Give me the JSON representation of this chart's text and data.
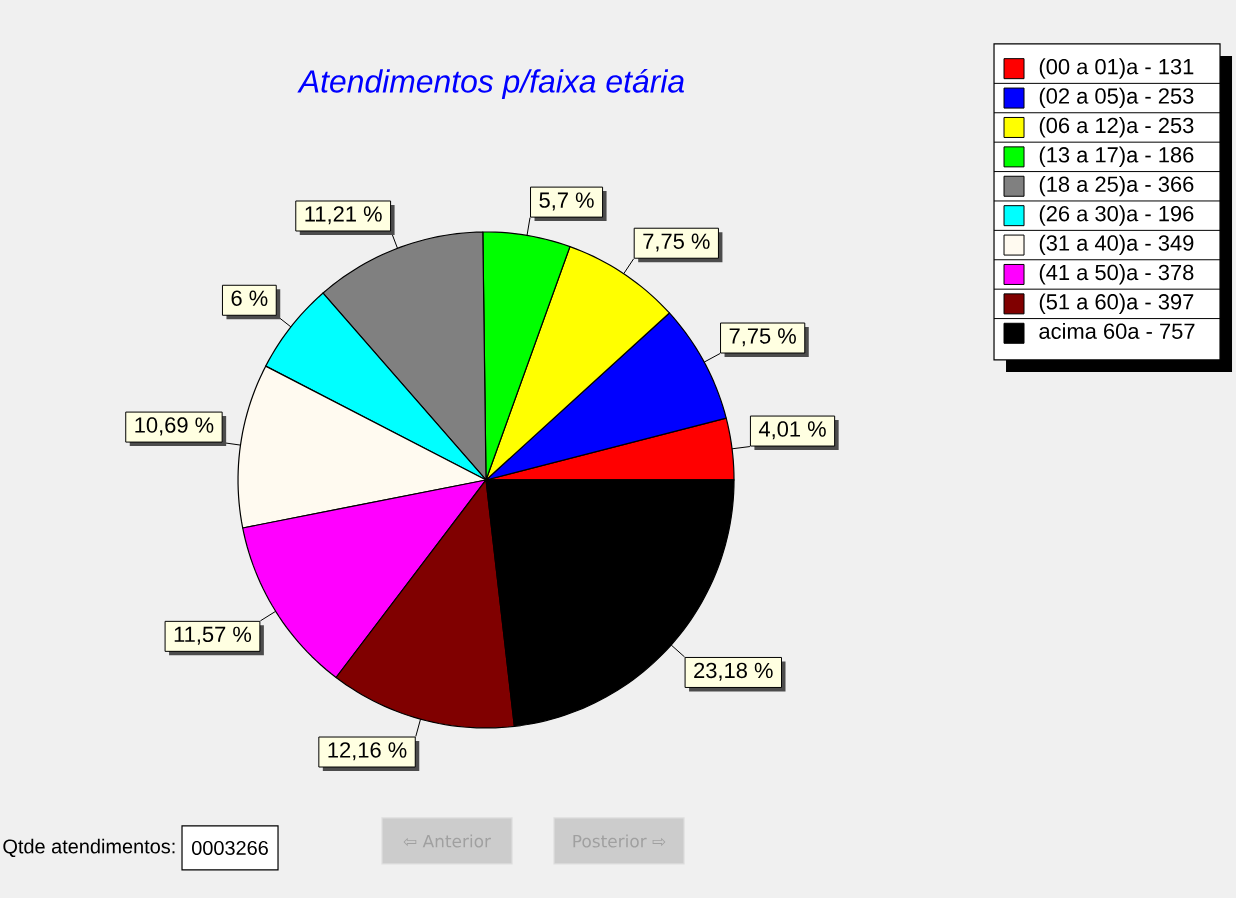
{
  "chart_data": {
    "type": "pie",
    "title": "Atendimentos p/faixa etária",
    "categories": [
      "(00 a 01)a - 131",
      "(02 a 05)a - 253",
      "(06 a 12)a - 253",
      "(13 a 17)a - 186",
      "(18 a 25)a - 366",
      "(26 a 30)a - 196",
      "(31 a 40)a - 349",
      "(41 a 50)a - 378",
      "(51 a 60)a - 397",
      "acima 60a - 757"
    ],
    "values": [
      4.01,
      7.75,
      7.75,
      5.7,
      11.21,
      6,
      10.69,
      11.57,
      12.16,
      23.18
    ],
    "colors": [
      "#ff0000",
      "#0000ff",
      "#ffff00",
      "#00ff00",
      "#808080",
      "#00ffff",
      "#fffaf0",
      "#ff00ff",
      "#800000",
      "#000000"
    ],
    "value_labels": [
      "4,01 %",
      "7,75 %",
      "7,75 %",
      "5,7 %",
      "11,21 %",
      "6 %",
      "10,69 %",
      "11,57 %",
      "12,16 %",
      "23,18 %"
    ],
    "legend": "top right",
    "annotations": [
      "Qtde atendimentos:",
      "0003266",
      "⇦ Anterior",
      "Posterior ⇨"
    ]
  }
}
